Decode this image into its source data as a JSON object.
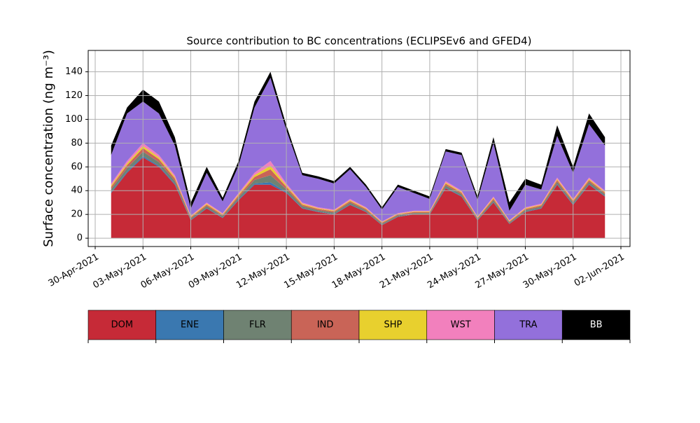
{
  "chart_data": {
    "type": "stacked_area",
    "title": "Source contribution to BC concentrations (ECLIPSEv6 and GFED4)",
    "ylabel": "Surface concentration (ng m⁻³)",
    "x": [
      "2021-05-01",
      "2021-05-02",
      "2021-05-03",
      "2021-05-04",
      "2021-05-05",
      "2021-05-06",
      "2021-05-07",
      "2021-05-08",
      "2021-05-09",
      "2021-05-10",
      "2021-05-11",
      "2021-05-12",
      "2021-05-13",
      "2021-05-14",
      "2021-05-15",
      "2021-05-16",
      "2021-05-17",
      "2021-05-18",
      "2021-05-19",
      "2021-05-20",
      "2021-05-21",
      "2021-05-22",
      "2021-05-23",
      "2021-05-24",
      "2021-05-25",
      "2021-05-26",
      "2021-05-27",
      "2021-05-28",
      "2021-05-29",
      "2021-05-30",
      "2021-05-31",
      "2021-06-01"
    ],
    "series": [
      {
        "name": "DOM",
        "color": "#c62a37",
        "values": [
          38,
          55,
          68,
          60,
          45,
          15,
          25,
          17,
          32,
          45,
          45,
          38,
          25,
          22,
          20,
          28,
          22,
          11,
          18,
          20,
          20,
          42,
          35,
          15,
          30,
          12,
          22,
          25,
          45,
          28,
          45,
          35
        ]
      },
      {
        "name": "ENE",
        "color": "#3a78b0",
        "values": [
          0.8,
          1,
          1.2,
          1,
          0.8,
          0.4,
          0.5,
          0.4,
          0.6,
          1,
          2,
          0.8,
          0.5,
          0.4,
          0.4,
          0.5,
          0.4,
          0.3,
          0.3,
          0.3,
          0.3,
          0.6,
          0.5,
          0.3,
          0.5,
          0.3,
          0.4,
          0.4,
          0.6,
          0.5,
          0.6,
          0.5
        ]
      },
      {
        "name": "FLR",
        "color": "#6f8272",
        "values": [
          2.4,
          3,
          3.6,
          3,
          2.4,
          1.2,
          1.5,
          1.2,
          1.8,
          3,
          6,
          2.4,
          1.5,
          1.2,
          1.2,
          1.5,
          1.2,
          0.9,
          0.9,
          0.9,
          0.9,
          1.8,
          1.5,
          0.9,
          1.5,
          0.9,
          1.2,
          1.2,
          1.8,
          1.5,
          1.8,
          1.5
        ]
      },
      {
        "name": "IND",
        "color": "#c96457",
        "values": [
          2,
          2.5,
          3,
          2.5,
          2,
          1,
          1.2,
          1,
          1.5,
          2.5,
          5,
          2,
          1.2,
          1,
          1,
          1.2,
          1,
          0.8,
          0.8,
          0.8,
          0.8,
          1.5,
          1.2,
          0.8,
          1.2,
          0.8,
          1,
          1,
          1.5,
          1.2,
          1.5,
          1.2
        ]
      },
      {
        "name": "SHP",
        "color": "#e8d02e",
        "values": [
          1.2,
          1.5,
          1.8,
          1.5,
          1.2,
          0.6,
          0.8,
          0.6,
          0.9,
          1.5,
          3,
          1.2,
          0.8,
          0.6,
          0.6,
          0.8,
          0.6,
          0.5,
          0.5,
          0.5,
          0.5,
          0.9,
          0.8,
          0.5,
          0.8,
          0.5,
          0.6,
          0.6,
          0.9,
          0.8,
          0.9,
          0.8
        ]
      },
      {
        "name": "WST",
        "color": "#f280bd",
        "values": [
          1.6,
          2,
          2.4,
          2,
          1.6,
          0.8,
          1,
          0.8,
          1.2,
          2,
          4,
          1.6,
          1,
          0.8,
          0.8,
          1,
          0.8,
          0.6,
          0.6,
          0.6,
          0.6,
          1.2,
          1,
          0.6,
          1,
          0.6,
          0.8,
          0.8,
          1.2,
          1,
          1.2,
          1
        ]
      },
      {
        "name": "TRA",
        "color": "#9370db",
        "values": [
          24,
          40,
          35,
          35,
          25,
          6,
          25,
          10,
          23,
          55,
          70,
          45,
          23,
          24,
          22,
          25,
          17,
          10,
          22,
          15,
          10,
          25,
          30,
          14,
          45,
          8,
          19,
          12,
          35,
          22,
          45,
          38
        ]
      },
      {
        "name": "BB",
        "color": "#000000",
        "values": [
          8,
          5,
          10,
          10,
          7,
          5,
          5,
          3,
          4,
          5,
          5,
          4,
          2,
          2,
          2,
          2,
          2,
          2,
          2,
          2,
          2,
          2,
          2,
          3,
          5,
          7,
          5,
          4,
          9,
          5,
          9,
          7
        ]
      }
    ],
    "xlim": [
      "2021-04-30",
      "2021-06-02"
    ],
    "xticks": [
      {
        "value": "2021-04-30",
        "label": "30-Apr-2021"
      },
      {
        "value": "2021-05-03",
        "label": "03-May-2021"
      },
      {
        "value": "2021-05-06",
        "label": "06-May-2021"
      },
      {
        "value": "2021-05-09",
        "label": "09-May-2021"
      },
      {
        "value": "2021-05-12",
        "label": "12-May-2021"
      },
      {
        "value": "2021-05-15",
        "label": "15-May-2021"
      },
      {
        "value": "2021-05-18",
        "label": "18-May-2021"
      },
      {
        "value": "2021-05-21",
        "label": "21-May-2021"
      },
      {
        "value": "2021-05-24",
        "label": "24-May-2021"
      },
      {
        "value": "2021-05-27",
        "label": "27-May-2021"
      },
      {
        "value": "2021-05-30",
        "label": "30-May-2021"
      },
      {
        "value": "2021-06-02",
        "label": "02-Jun-2021"
      }
    ],
    "ylim": [
      -7,
      158
    ],
    "yticks": [
      0,
      20,
      40,
      60,
      80,
      100,
      120,
      140
    ],
    "grid": true
  }
}
